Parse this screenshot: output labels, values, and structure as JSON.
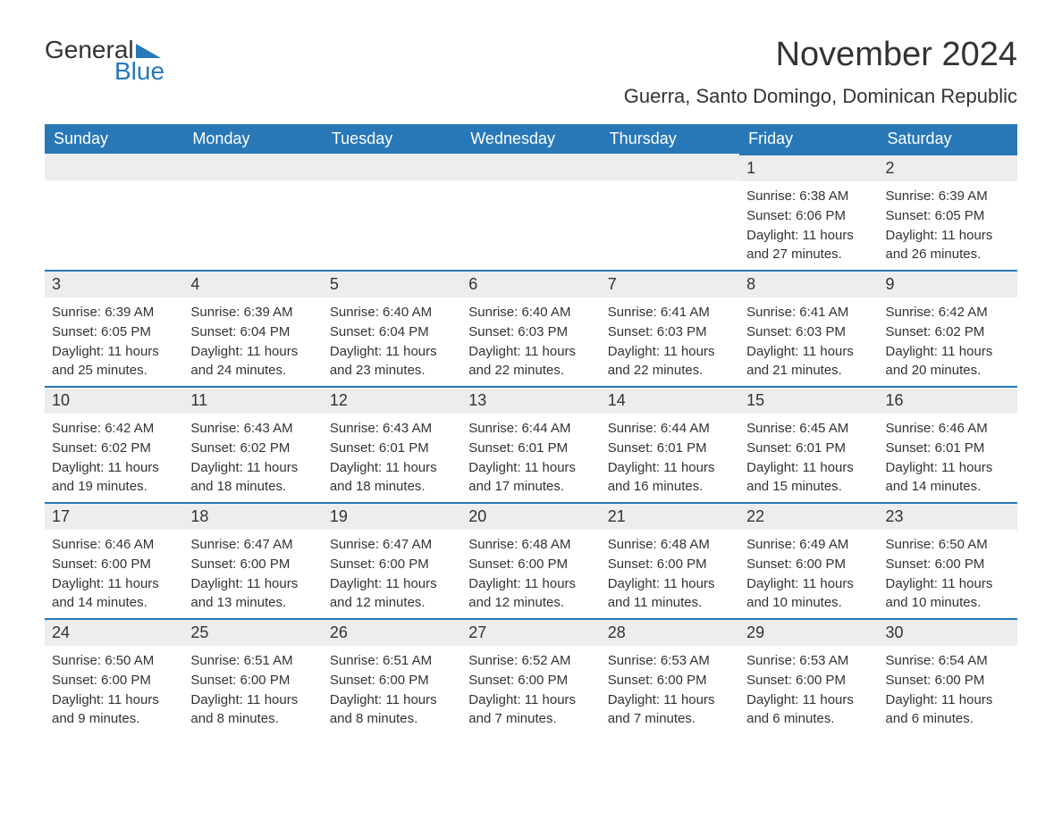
{
  "logo": {
    "text_top": "General",
    "text_bottom": "Blue",
    "main_color": "#333333",
    "accent_color": "#2878b8"
  },
  "title": "November 2024",
  "location": "Guerra, Santo Domingo, Dominican Republic",
  "colors": {
    "header_bg": "#2878b8",
    "header_text": "#ffffff",
    "day_bar_bg": "#ededed",
    "day_bar_border": "#2878b8",
    "body_text": "#333333",
    "background": "#ffffff"
  },
  "typography": {
    "title_fontsize": 38,
    "location_fontsize": 22,
    "weekday_fontsize": 18,
    "daynum_fontsize": 18,
    "body_fontsize": 15
  },
  "calendar": {
    "weekdays": [
      "Sunday",
      "Monday",
      "Tuesday",
      "Wednesday",
      "Thursday",
      "Friday",
      "Saturday"
    ],
    "weeks": [
      [
        null,
        null,
        null,
        null,
        null,
        {
          "day": "1",
          "sunrise": "6:38 AM",
          "sunset": "6:06 PM",
          "daylight": "11 hours and 27 minutes."
        },
        {
          "day": "2",
          "sunrise": "6:39 AM",
          "sunset": "6:05 PM",
          "daylight": "11 hours and 26 minutes."
        }
      ],
      [
        {
          "day": "3",
          "sunrise": "6:39 AM",
          "sunset": "6:05 PM",
          "daylight": "11 hours and 25 minutes."
        },
        {
          "day": "4",
          "sunrise": "6:39 AM",
          "sunset": "6:04 PM",
          "daylight": "11 hours and 24 minutes."
        },
        {
          "day": "5",
          "sunrise": "6:40 AM",
          "sunset": "6:04 PM",
          "daylight": "11 hours and 23 minutes."
        },
        {
          "day": "6",
          "sunrise": "6:40 AM",
          "sunset": "6:03 PM",
          "daylight": "11 hours and 22 minutes."
        },
        {
          "day": "7",
          "sunrise": "6:41 AM",
          "sunset": "6:03 PM",
          "daylight": "11 hours and 22 minutes."
        },
        {
          "day": "8",
          "sunrise": "6:41 AM",
          "sunset": "6:03 PM",
          "daylight": "11 hours and 21 minutes."
        },
        {
          "day": "9",
          "sunrise": "6:42 AM",
          "sunset": "6:02 PM",
          "daylight": "11 hours and 20 minutes."
        }
      ],
      [
        {
          "day": "10",
          "sunrise": "6:42 AM",
          "sunset": "6:02 PM",
          "daylight": "11 hours and 19 minutes."
        },
        {
          "day": "11",
          "sunrise": "6:43 AM",
          "sunset": "6:02 PM",
          "daylight": "11 hours and 18 minutes."
        },
        {
          "day": "12",
          "sunrise": "6:43 AM",
          "sunset": "6:01 PM",
          "daylight": "11 hours and 18 minutes."
        },
        {
          "day": "13",
          "sunrise": "6:44 AM",
          "sunset": "6:01 PM",
          "daylight": "11 hours and 17 minutes."
        },
        {
          "day": "14",
          "sunrise": "6:44 AM",
          "sunset": "6:01 PM",
          "daylight": "11 hours and 16 minutes."
        },
        {
          "day": "15",
          "sunrise": "6:45 AM",
          "sunset": "6:01 PM",
          "daylight": "11 hours and 15 minutes."
        },
        {
          "day": "16",
          "sunrise": "6:46 AM",
          "sunset": "6:01 PM",
          "daylight": "11 hours and 14 minutes."
        }
      ],
      [
        {
          "day": "17",
          "sunrise": "6:46 AM",
          "sunset": "6:00 PM",
          "daylight": "11 hours and 14 minutes."
        },
        {
          "day": "18",
          "sunrise": "6:47 AM",
          "sunset": "6:00 PM",
          "daylight": "11 hours and 13 minutes."
        },
        {
          "day": "19",
          "sunrise": "6:47 AM",
          "sunset": "6:00 PM",
          "daylight": "11 hours and 12 minutes."
        },
        {
          "day": "20",
          "sunrise": "6:48 AM",
          "sunset": "6:00 PM",
          "daylight": "11 hours and 12 minutes."
        },
        {
          "day": "21",
          "sunrise": "6:48 AM",
          "sunset": "6:00 PM",
          "daylight": "11 hours and 11 minutes."
        },
        {
          "day": "22",
          "sunrise": "6:49 AM",
          "sunset": "6:00 PM",
          "daylight": "11 hours and 10 minutes."
        },
        {
          "day": "23",
          "sunrise": "6:50 AM",
          "sunset": "6:00 PM",
          "daylight": "11 hours and 10 minutes."
        }
      ],
      [
        {
          "day": "24",
          "sunrise": "6:50 AM",
          "sunset": "6:00 PM",
          "daylight": "11 hours and 9 minutes."
        },
        {
          "day": "25",
          "sunrise": "6:51 AM",
          "sunset": "6:00 PM",
          "daylight": "11 hours and 8 minutes."
        },
        {
          "day": "26",
          "sunrise": "6:51 AM",
          "sunset": "6:00 PM",
          "daylight": "11 hours and 8 minutes."
        },
        {
          "day": "27",
          "sunrise": "6:52 AM",
          "sunset": "6:00 PM",
          "daylight": "11 hours and 7 minutes."
        },
        {
          "day": "28",
          "sunrise": "6:53 AM",
          "sunset": "6:00 PM",
          "daylight": "11 hours and 7 minutes."
        },
        {
          "day": "29",
          "sunrise": "6:53 AM",
          "sunset": "6:00 PM",
          "daylight": "11 hours and 6 minutes."
        },
        {
          "day": "30",
          "sunrise": "6:54 AM",
          "sunset": "6:00 PM",
          "daylight": "11 hours and 6 minutes."
        }
      ]
    ],
    "labels": {
      "sunrise": "Sunrise:",
      "sunset": "Sunset:",
      "daylight": "Daylight:"
    }
  }
}
